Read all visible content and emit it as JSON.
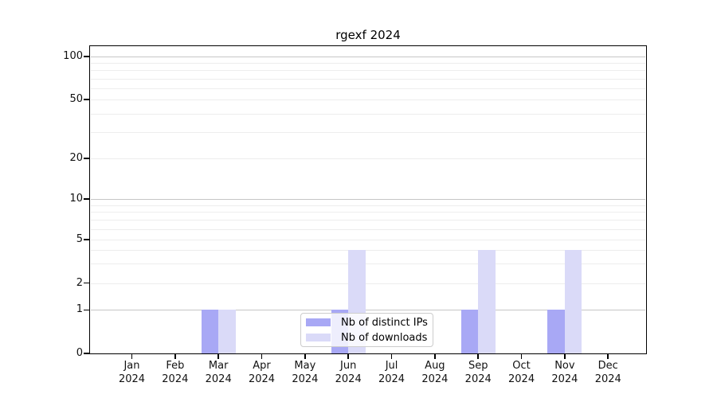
{
  "chart_data": {
    "type": "bar",
    "title": "rgexf 2024",
    "xlabel": "",
    "ylabel": "",
    "categories": [
      "Jan 2024",
      "Feb 2024",
      "Mar 2024",
      "Apr 2024",
      "May 2024",
      "Jun 2024",
      "Jul 2024",
      "Aug 2024",
      "Sep 2024",
      "Oct 2024",
      "Nov 2024",
      "Dec 2024"
    ],
    "series": [
      {
        "name": "Nb of distinct IPs",
        "color": "#a8a8f5",
        "values": [
          0,
          0,
          1,
          0,
          0,
          1,
          0,
          0,
          1,
          0,
          1,
          0
        ]
      },
      {
        "name": "Nb of downloads",
        "color": "#dadaf8",
        "values": [
          0,
          0,
          1,
          0,
          0,
          4,
          0,
          0,
          4,
          0,
          4,
          0
        ]
      }
    ],
    "yscale": "symlog",
    "ylim": [
      0,
      130
    ],
    "yticks": [
      0,
      1,
      2,
      5,
      10,
      20,
      50,
      100
    ],
    "major_gridlines": [
      1,
      10,
      100
    ],
    "minor_gridlines": [
      2,
      3,
      4,
      5,
      6,
      7,
      8,
      9,
      20,
      30,
      40,
      50,
      60,
      70,
      80,
      90
    ],
    "grid": "horizontal",
    "legend": {
      "position": "inside-bottom-center",
      "entries": [
        "Nb of distinct IPs",
        "Nb of downloads"
      ]
    },
    "colors": {
      "distinct_ips": "#a8a8f5",
      "downloads": "#dadaf8",
      "major_grid": "#c6c6c6",
      "minor_grid": "#ededed",
      "spine": "#000000"
    }
  }
}
